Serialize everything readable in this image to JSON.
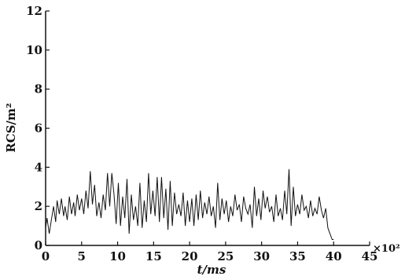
{
  "chart_data": {
    "type": "line",
    "title": "",
    "xlabel": "t/ms",
    "ylabel": "RCS/m²",
    "x_multiplier_label": "×10²",
    "xlim": [
      0,
      45
    ],
    "ylim": [
      0,
      12
    ],
    "xticks": [
      "0",
      "5",
      "10",
      "15",
      "20",
      "25",
      "30",
      "35",
      "40",
      "45"
    ],
    "yticks": [
      "0",
      "2",
      "4",
      "6",
      "8",
      "10",
      "12"
    ],
    "grid": false,
    "legend": "none",
    "line_color": "#111111",
    "series": [
      {
        "x": [
          0.0,
          0.2,
          0.5,
          0.8,
          1.1,
          1.4,
          1.6,
          1.9,
          2.2,
          2.5,
          2.7,
          3.0,
          3.3,
          3.6,
          3.9,
          4.1,
          4.4,
          4.7,
          5.0,
          5.3,
          5.6,
          5.9,
          6.2,
          6.5,
          6.8,
          7.1,
          7.4,
          7.7,
          8.0,
          8.3,
          8.6,
          8.9,
          9.2,
          9.5,
          9.8,
          10.1,
          10.4,
          10.7,
          11.0,
          11.3,
          11.6,
          11.9,
          12.2,
          12.5,
          12.8,
          13.1,
          13.4,
          13.7,
          14.0,
          14.3,
          14.6,
          14.9,
          15.2,
          15.5,
          15.8,
          16.1,
          16.4,
          16.7,
          17.0,
          17.3,
          17.6,
          17.9,
          18.2,
          18.5,
          18.8,
          19.1,
          19.4,
          19.7,
          20.0,
          20.3,
          20.6,
          20.9,
          21.2,
          21.5,
          21.8,
          22.1,
          22.4,
          22.7,
          23.0,
          23.3,
          23.6,
          23.9,
          24.2,
          24.5,
          24.8,
          25.1,
          25.4,
          25.7,
          26.0,
          26.3,
          26.6,
          26.9,
          27.2,
          27.5,
          27.8,
          28.1,
          28.4,
          28.7,
          29.0,
          29.3,
          29.6,
          29.9,
          30.2,
          30.5,
          30.8,
          31.1,
          31.4,
          31.7,
          32.0,
          32.3,
          32.6,
          32.9,
          33.2,
          33.5,
          33.8,
          34.1,
          34.4,
          34.7,
          35.0,
          35.3,
          35.6,
          35.9,
          36.2,
          36.5,
          36.8,
          37.1,
          37.4,
          37.7,
          38.0,
          38.3,
          38.6,
          38.9,
          39.2,
          39.5,
          39.8,
          40.0
        ],
        "y": [
          0.9,
          1.4,
          0.6,
          1.3,
          2.0,
          1.2,
          2.3,
          1.6,
          2.4,
          1.5,
          2.0,
          1.3,
          2.5,
          1.6,
          2.2,
          1.5,
          2.6,
          1.8,
          2.4,
          1.6,
          2.8,
          1.9,
          3.8,
          2.1,
          3.1,
          1.5,
          2.2,
          1.4,
          2.6,
          1.8,
          3.7,
          2.0,
          3.7,
          2.6,
          1.1,
          3.2,
          1.0,
          2.5,
          1.4,
          3.4,
          0.6,
          2.6,
          1.3,
          2.0,
          1.0,
          3.2,
          0.9,
          2.3,
          1.2,
          3.7,
          1.6,
          2.8,
          1.5,
          3.5,
          1.2,
          3.5,
          1.4,
          2.9,
          0.8,
          3.3,
          1.0,
          2.7,
          1.6,
          2.1,
          1.5,
          2.7,
          1.0,
          2.3,
          1.2,
          2.4,
          1.0,
          2.6,
          1.3,
          2.8,
          1.4,
          2.2,
          1.6,
          2.5,
          1.5,
          2.0,
          0.9,
          3.2,
          1.3,
          2.4,
          1.6,
          2.3,
          1.2,
          2.0,
          1.5,
          2.6,
          1.8,
          2.1,
          1.2,
          2.5,
          1.9,
          1.6,
          2.1,
          0.9,
          3.0,
          1.5,
          2.4,
          1.3,
          2.8,
          1.9,
          2.5,
          1.7,
          2.0,
          1.2,
          2.6,
          1.5,
          1.9,
          1.3,
          2.8,
          1.6,
          3.9,
          1.0,
          3.0,
          1.5,
          2.1,
          1.6,
          2.6,
          1.8,
          2.0,
          1.4,
          2.3,
          1.5,
          1.9,
          1.6,
          2.5,
          1.8,
          1.4,
          1.9,
          0.9,
          0.6,
          0.3,
          0.3
        ]
      }
    ]
  }
}
